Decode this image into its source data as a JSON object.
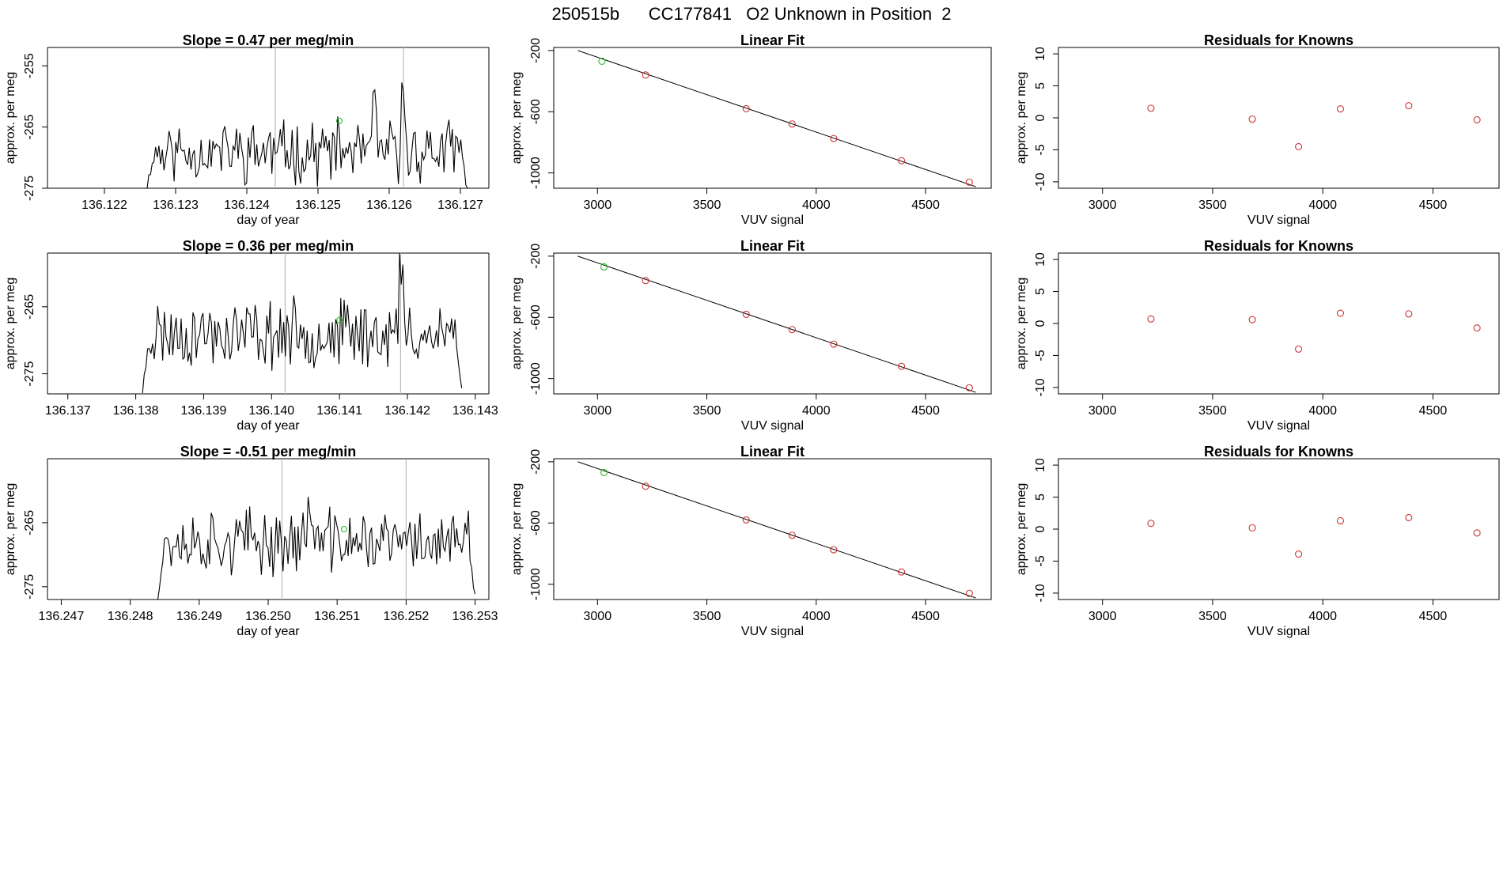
{
  "page_title": "250515b      CC177841   O2 Unknown in Position  2",
  "colors": {
    "trace": "#000000",
    "unknown_point": "#22bb22",
    "known_point": "#cc3333",
    "marker_line": "#bbbbbb"
  },
  "chart_data": [
    {
      "id": "ts1",
      "type": "line",
      "title": "Slope =  0.47  per meg/min",
      "xlabel": "day of year",
      "ylabel": "approx. per meg",
      "xlim": [
        136.1212,
        136.1274
      ],
      "ylim": [
        -275,
        -252
      ],
      "x_ticks": [
        136.122,
        136.123,
        136.124,
        136.125,
        136.126,
        136.127
      ],
      "x_tick_labels": [
        "136.122",
        "136.123",
        "136.124",
        "136.125",
        "136.126",
        "136.127"
      ],
      "y_ticks": [
        -275,
        -265,
        -255
      ],
      "y_tick_labels": [
        "-275",
        "-265",
        "-255"
      ],
      "x_start": 136.1226,
      "x_end": 136.1271,
      "base": -269,
      "amp": 4,
      "seed": 11,
      "bumps": [
        [
          136.1258,
          6
        ],
        [
          136.1262,
          7
        ]
      ],
      "vlines": [
        136.1244,
        136.1262
      ],
      "unknown_point": {
        "x": 136.1253,
        "y": -264
      }
    },
    {
      "id": "fit1",
      "type": "scatter",
      "title": "Linear Fit",
      "xlabel": "VUV signal",
      "ylabel": "approx. per meg",
      "xlim": [
        2800,
        4800
      ],
      "ylim": [
        -1100,
        -180
      ],
      "x_ticks": [
        3000,
        3500,
        4000,
        4500
      ],
      "x_tick_labels": [
        "3000",
        "3500",
        "4000",
        "4500"
      ],
      "y_ticks": [
        -1000,
        -600,
        -200
      ],
      "y_tick_labels": [
        "-1000",
        "-600",
        "-200"
      ],
      "fit_line": [
        [
          2910,
          -200
        ],
        [
          4730,
          -1090
        ]
      ],
      "unknown_points": [
        [
          3020,
          -270
        ]
      ],
      "known_points": [
        [
          3220,
          -360
        ],
        [
          3680,
          -580
        ],
        [
          3890,
          -680
        ],
        [
          4080,
          -775
        ],
        [
          4390,
          -920
        ],
        [
          4700,
          -1060
        ]
      ]
    },
    {
      "id": "res1",
      "type": "scatter",
      "title": "Residuals for Knowns",
      "xlabel": "VUV signal",
      "ylabel": "approx. per meg",
      "xlim": [
        2800,
        4800
      ],
      "ylim": [
        -11,
        11
      ],
      "x_ticks": [
        3000,
        3500,
        4000,
        4500
      ],
      "x_tick_labels": [
        "3000",
        "3500",
        "4000",
        "4500"
      ],
      "y_ticks": [
        -10,
        -5,
        0,
        5,
        10
      ],
      "y_tick_labels": [
        "-10",
        "-5",
        "0",
        "5",
        "10"
      ],
      "known_points": [
        [
          3220,
          1.5
        ],
        [
          3680,
          -0.2
        ],
        [
          3890,
          -4.5
        ],
        [
          4080,
          1.4
        ],
        [
          4390,
          1.9
        ],
        [
          4700,
          -0.3
        ]
      ]
    },
    {
      "id": "ts2",
      "type": "line",
      "title": "Slope =  0.36  per meg/min",
      "xlabel": "day of year",
      "ylabel": "approx. per meg",
      "xlim": [
        136.1367,
        136.1432
      ],
      "ylim": [
        -278,
        -257
      ],
      "x_ticks": [
        136.137,
        136.138,
        136.139,
        136.14,
        136.141,
        136.142,
        136.143
      ],
      "x_tick_labels": [
        "136.137",
        "136.138",
        "136.139",
        "136.140",
        "136.141",
        "136.142",
        "136.143"
      ],
      "y_ticks": [
        -275,
        -265
      ],
      "y_tick_labels": [
        "-275",
        "-265"
      ],
      "x_start": 136.1381,
      "x_end": 136.1428,
      "base": -269,
      "amp": 4,
      "seed": 23,
      "bumps": [
        [
          136.1419,
          9
        ]
      ],
      "vlines": [
        136.1402,
        136.1419
      ],
      "unknown_point": {
        "x": 136.141,
        "y": -267
      }
    },
    {
      "id": "fit2",
      "type": "scatter",
      "title": "Linear Fit",
      "xlabel": "VUV signal",
      "ylabel": "approx. per meg",
      "xlim": [
        2800,
        4800
      ],
      "ylim": [
        -1100,
        -180
      ],
      "x_ticks": [
        3000,
        3500,
        4000,
        4500
      ],
      "x_tick_labels": [
        "3000",
        "3500",
        "4000",
        "4500"
      ],
      "y_ticks": [
        -1000,
        -600,
        -200
      ],
      "y_tick_labels": [
        "-1000",
        "-600",
        "-200"
      ],
      "fit_line": [
        [
          2910,
          -200
        ],
        [
          4730,
          -1090
        ]
      ],
      "unknown_points": [
        [
          3030,
          -270
        ]
      ],
      "known_points": [
        [
          3220,
          -360
        ],
        [
          3680,
          -580
        ],
        [
          3890,
          -680
        ],
        [
          4080,
          -775
        ],
        [
          4390,
          -920
        ],
        [
          4700,
          -1060
        ]
      ]
    },
    {
      "id": "res2",
      "type": "scatter",
      "title": "Residuals for Knowns",
      "xlabel": "VUV signal",
      "ylabel": "approx. per meg",
      "xlim": [
        2800,
        4800
      ],
      "ylim": [
        -11,
        11
      ],
      "x_ticks": [
        3000,
        3500,
        4000,
        4500
      ],
      "x_tick_labels": [
        "3000",
        "3500",
        "4000",
        "4500"
      ],
      "y_ticks": [
        -10,
        -5,
        0,
        5,
        10
      ],
      "y_tick_labels": [
        "-10",
        "-5",
        "0",
        "5",
        "10"
      ],
      "known_points": [
        [
          3220,
          0.7
        ],
        [
          3680,
          0.6
        ],
        [
          3890,
          -4.0
        ],
        [
          4080,
          1.6
        ],
        [
          4390,
          1.5
        ],
        [
          4700,
          -0.7
        ]
      ]
    },
    {
      "id": "ts3",
      "type": "line",
      "title": "Slope =  -0.51  per meg/min",
      "xlabel": "day of year",
      "ylabel": "approx. per meg",
      "xlim": [
        136.2468,
        136.2532
      ],
      "ylim": [
        -277,
        -255
      ],
      "x_ticks": [
        136.247,
        136.248,
        136.249,
        136.25,
        136.251,
        136.252,
        136.253
      ],
      "x_tick_labels": [
        "136.247",
        "136.248",
        "136.249",
        "136.250",
        "136.251",
        "136.252",
        "136.253"
      ],
      "y_ticks": [
        -275,
        -265
      ],
      "y_tick_labels": [
        "-275",
        "-265"
      ],
      "x_start": 136.2484,
      "x_end": 136.253,
      "base": -268,
      "amp": 4,
      "seed": 37,
      "bumps": [
        [
          136.2506,
          7
        ]
      ],
      "vlines": [
        136.2502,
        136.252
      ],
      "unknown_point": {
        "x": 136.2511,
        "y": -266
      }
    },
    {
      "id": "fit3",
      "type": "scatter",
      "title": "Linear Fit",
      "xlabel": "VUV signal",
      "ylabel": "approx. per meg",
      "xlim": [
        2800,
        4800
      ],
      "ylim": [
        -1100,
        -180
      ],
      "x_ticks": [
        3000,
        3500,
        4000,
        4500
      ],
      "x_tick_labels": [
        "3000",
        "3500",
        "4000",
        "4500"
      ],
      "y_ticks": [
        -1000,
        -600,
        -200
      ],
      "y_tick_labels": [
        "-1000",
        "-600",
        "-200"
      ],
      "fit_line": [
        [
          2910,
          -200
        ],
        [
          4730,
          -1090
        ]
      ],
      "unknown_points": [
        [
          3030,
          -270
        ]
      ],
      "known_points": [
        [
          3220,
          -360
        ],
        [
          3680,
          -580
        ],
        [
          3890,
          -680
        ],
        [
          4080,
          -775
        ],
        [
          4390,
          -920
        ],
        [
          4700,
          -1060
        ]
      ]
    },
    {
      "id": "res3",
      "type": "scatter",
      "title": "Residuals for Knowns",
      "xlabel": "VUV signal",
      "ylabel": "approx. per meg",
      "xlim": [
        2800,
        4800
      ],
      "ylim": [
        -11,
        11
      ],
      "x_ticks": [
        3000,
        3500,
        4000,
        4500
      ],
      "x_tick_labels": [
        "3000",
        "3500",
        "4000",
        "4500"
      ],
      "y_ticks": [
        -10,
        -5,
        0,
        5,
        10
      ],
      "y_tick_labels": [
        "-10",
        "-5",
        "0",
        "5",
        "10"
      ],
      "known_points": [
        [
          3220,
          0.9
        ],
        [
          3680,
          0.2
        ],
        [
          3890,
          -3.9
        ],
        [
          4080,
          1.3
        ],
        [
          4390,
          1.8
        ],
        [
          4700,
          -0.6
        ]
      ]
    }
  ]
}
